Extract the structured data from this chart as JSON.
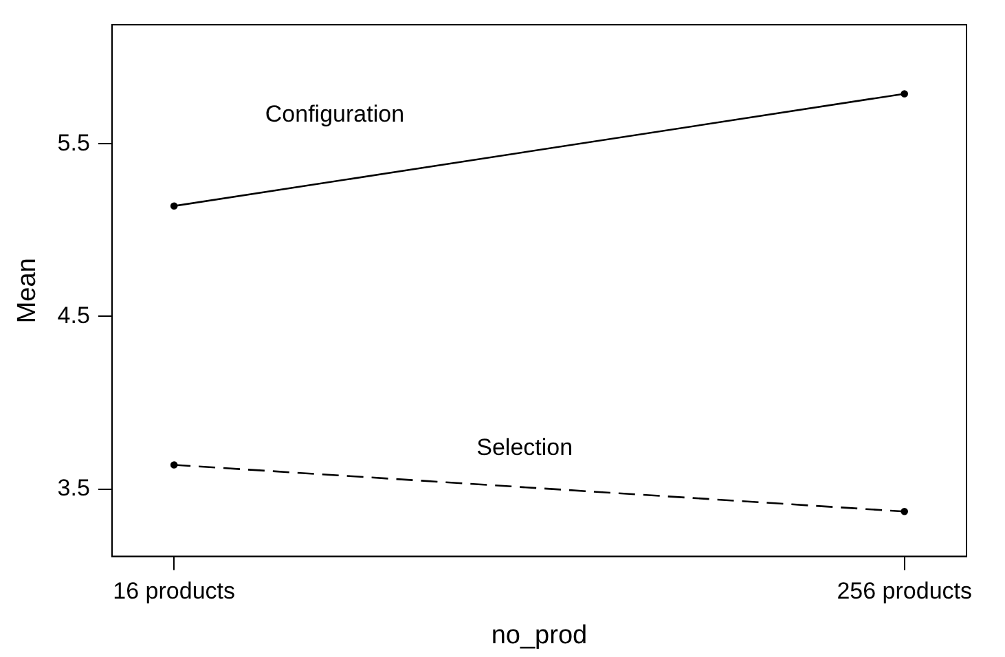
{
  "chart_data": {
    "type": "line",
    "xlabel": "no_prod",
    "ylabel": "Mean",
    "categories": [
      "16 products",
      "256 products"
    ],
    "series": [
      {
        "name": "Configuration",
        "color": "#000000",
        "values": [
          5.14,
          5.79
        ],
        "line_style": "solid"
      },
      {
        "name": "Selection",
        "color": "#000000",
        "values": [
          3.64,
          3.37
        ],
        "line_style": "dashed"
      }
    ],
    "ylim": [
      3.11,
      6.19
    ],
    "yticks": [
      3.5,
      4.5,
      5.5
    ],
    "grid": false,
    "legend": false,
    "marker": "circle"
  }
}
